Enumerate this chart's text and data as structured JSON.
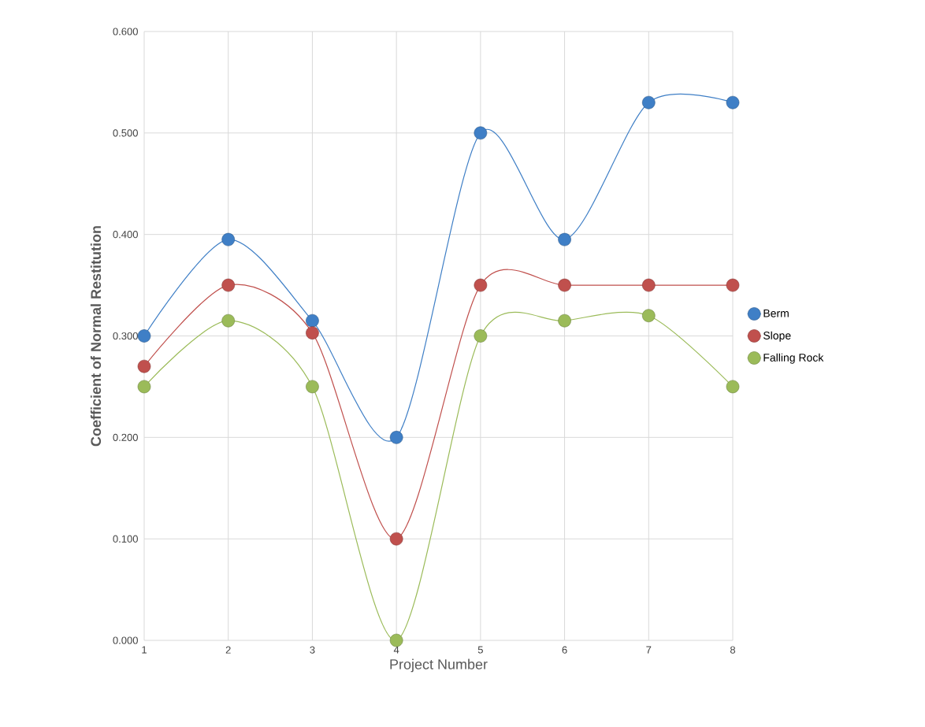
{
  "chart_data": {
    "type": "line",
    "xlabel": "Project Number",
    "ylabel": "Coefficient of Normal Restitution",
    "x": [
      1,
      2,
      3,
      4,
      5,
      6,
      7,
      8
    ],
    "series": [
      {
        "name": "Berm",
        "color": "#3f7fc6",
        "values": [
          0.3,
          0.395,
          0.315,
          0.2,
          0.5,
          0.395,
          0.53,
          0.53
        ]
      },
      {
        "name": "Slope",
        "color": "#c0504d",
        "values": [
          0.27,
          0.35,
          0.303,
          0.1,
          0.35,
          0.35,
          0.35,
          0.35
        ]
      },
      {
        "name": "Falling Rock",
        "color": "#9bbb59",
        "values": [
          0.25,
          0.315,
          0.25,
          0.0,
          0.3,
          0.315,
          0.32,
          0.25
        ]
      }
    ],
    "xlim": [
      1,
      8
    ],
    "xticks": [
      1,
      2,
      3,
      4,
      5,
      6,
      7,
      8
    ],
    "ylim": [
      0,
      0.6
    ],
    "yticks": [
      {
        "value": 0,
        "label": "0.000"
      },
      {
        "value": 0.1,
        "label": "0.100"
      },
      {
        "value": 0.2,
        "label": "0.200"
      },
      {
        "value": 0.3,
        "label": "0.300"
      },
      {
        "value": 0.4,
        "label": "0.400"
      },
      {
        "value": 0.5,
        "label": "0.500"
      },
      {
        "value": 0.6,
        "label": "0.600"
      }
    ],
    "grid": true,
    "legend": "right",
    "marker": "circle",
    "line_style": "solid"
  }
}
